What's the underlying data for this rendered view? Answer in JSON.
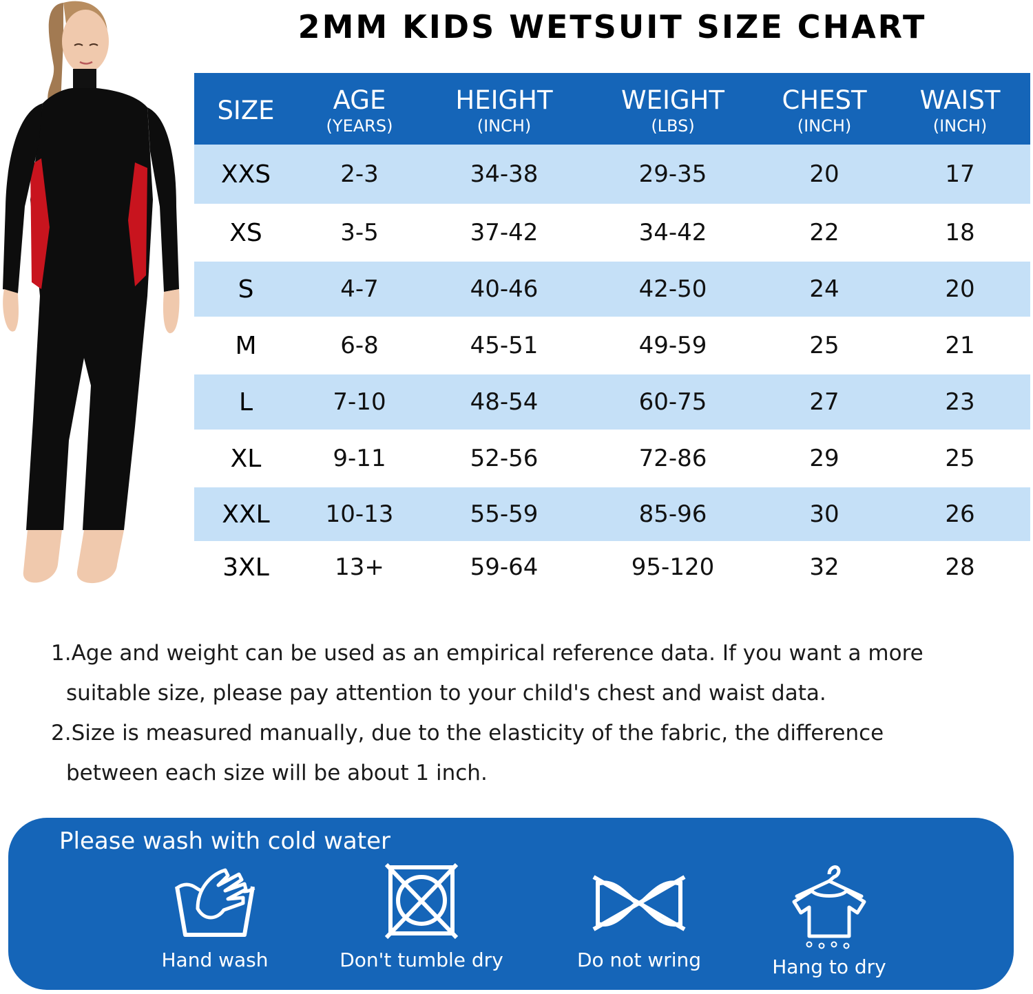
{
  "title": "2MM KIDS WETSUIT SIZE CHART",
  "table": {
    "headers": [
      {
        "label": "SIZE",
        "unit": ""
      },
      {
        "label": "AGE",
        "unit": "(YEARS)"
      },
      {
        "label": "HEIGHT",
        "unit": "(INCH)"
      },
      {
        "label": "WEIGHT",
        "unit": "(LBS)"
      },
      {
        "label": "CHEST",
        "unit": "(INCH)"
      },
      {
        "label": "WAIST",
        "unit": "(INCH)"
      }
    ],
    "rows": [
      [
        "XXS",
        "2-3",
        "34-38",
        "29-35",
        "20",
        "17"
      ],
      [
        "XS",
        "3-5",
        "37-42",
        "34-42",
        "22",
        "18"
      ],
      [
        "S",
        "4-7",
        "40-46",
        "42-50",
        "24",
        "20"
      ],
      [
        "M",
        "6-8",
        "45-51",
        "49-59",
        "25",
        "21"
      ],
      [
        "L",
        "7-10",
        "48-54",
        "60-75",
        "27",
        "23"
      ],
      [
        "XL",
        "9-11",
        "52-56",
        "72-86",
        "29",
        "25"
      ],
      [
        "XXL",
        "10-13",
        "55-59",
        "85-96",
        "30",
        "26"
      ],
      [
        "3XL",
        "13+",
        "59-64",
        "95-120",
        "32",
        "28"
      ]
    ],
    "header_color": "#1565b8",
    "stripe_color": "#c5e0f7"
  },
  "notes": [
    {
      "line1": "1.Age and weight can be used as an empirical reference data. If you want a more",
      "line2": "suitable size, please pay attention to your child's chest and waist data."
    },
    {
      "line1": "2.Size is measured manually, due to the elasticity of the fabric, the difference",
      "line2": "between each size will be about 1 inch."
    }
  ],
  "care": {
    "title": "Please wash with cold water",
    "items": [
      {
        "label": "Hand wash",
        "icon": "hand-wash-icon"
      },
      {
        "label": "Don't tumble dry",
        "icon": "no-tumble-dry-icon"
      },
      {
        "label": "Do not wring",
        "icon": "no-wring-icon"
      },
      {
        "label": "Hang to dry",
        "icon": "hang-dry-icon"
      }
    ],
    "panel_color": "#1565b8"
  },
  "model": {
    "suit_color": "#0a0a0a",
    "accent_color": "#c8141e"
  }
}
